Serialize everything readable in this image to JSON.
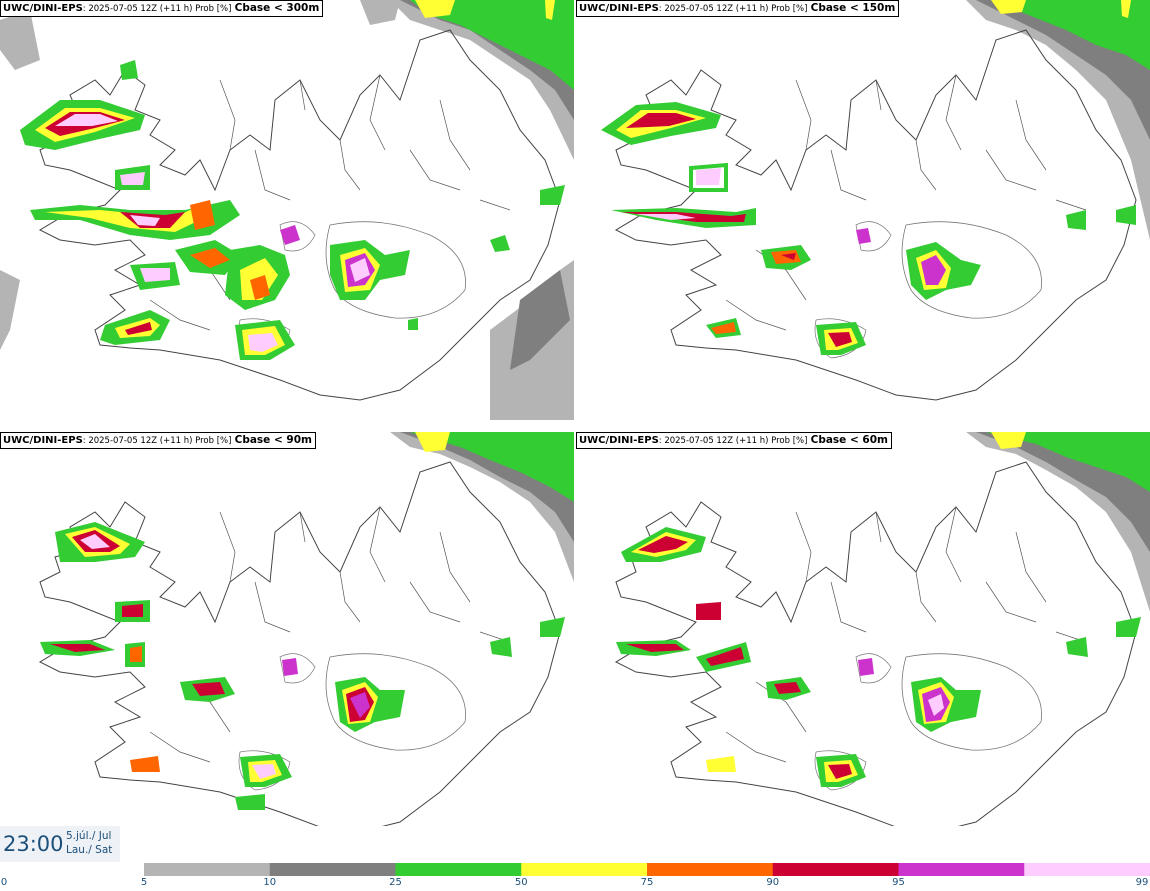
{
  "panels": [
    {
      "model": "UWC/DINI-EPS",
      "meta": ": 2025-07-05 12Z (+11 h) Prob [%]",
      "field": "Cbase < 300m"
    },
    {
      "model": "UWC/DINI-EPS",
      "meta": ": 2025-07-05 12Z (+11 h) Prob [%]",
      "field": "Cbase < 150m"
    },
    {
      "model": "UWC/DINI-EPS",
      "meta": ": 2025-07-05 12Z (+11 h) Prob [%]",
      "field": "Cbase < 90m"
    },
    {
      "model": "UWC/DINI-EPS",
      "meta": ": 2025-07-05 12Z (+11 h) Prob [%]",
      "field": "Cbase < 60m"
    }
  ],
  "valid_time": {
    "time": "23:00",
    "date_line1": "5.júl./ Jul",
    "date_line2": "Lau./ Sat"
  },
  "colorbar": {
    "labels": [
      "0",
      "5",
      "10",
      "25",
      "50",
      "75",
      "90",
      "95",
      "99"
    ],
    "colors": [
      "#b4b4b4",
      "#7f7f7f",
      "#33cc33",
      "#ffff33",
      "#ff6600",
      "#cc0033",
      "#cc33cc",
      "#ffccff"
    ]
  },
  "colors": {
    "lightgray": "#b4b4b4",
    "gray": "#7f7f7f",
    "green": "#33cc33",
    "yellow": "#ffff33",
    "orange": "#ff6600",
    "red": "#cc0033",
    "magenta": "#cc33cc",
    "pink": "#ffccff",
    "label_blue": "#1b4f7a"
  }
}
